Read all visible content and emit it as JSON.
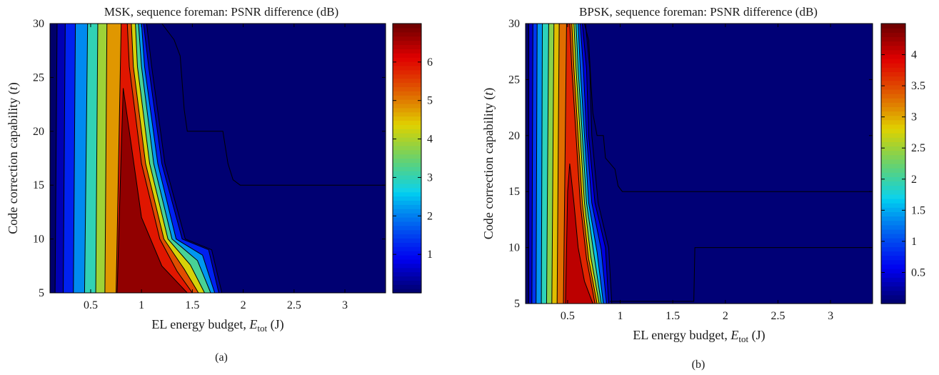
{
  "chart_data": [
    {
      "type": "contour",
      "title": "MSK, sequence foreman: PSNR difference (dB)",
      "xlabel_main": "EL energy budget, ",
      "xlabel_sym": "E",
      "xlabel_sub": "tot",
      "xlabel_unit": " (J)",
      "ylabel_main": "Code correction capability (",
      "ylabel_sym": "t",
      "ylabel_end": ")",
      "panel_label": "(a)",
      "xlim": [
        0.1,
        3.4
      ],
      "ylim": [
        5,
        30
      ],
      "xticks": [
        0.5,
        1,
        1.5,
        2,
        2.5,
        3
      ],
      "xtick_labels": [
        "0.5",
        "1",
        "1.5",
        "2",
        "2.5",
        "3"
      ],
      "yticks": [
        5,
        10,
        15,
        20,
        25,
        30
      ],
      "ytick_labels": [
        "5",
        "10",
        "15",
        "20",
        "25",
        "30"
      ],
      "colorbar_range": [
        0,
        7
      ],
      "colorbar_ticks": [
        1,
        2,
        3,
        4,
        5,
        6
      ],
      "colorbar_labels": [
        "1",
        "2",
        "3",
        "4",
        "5",
        "6"
      ],
      "bands": [
        {
          "level": 0.0,
          "x": [
            0.1,
            0.1
          ]
        },
        {
          "level": 0.5,
          "x": [
            0.15,
            0.17
          ]
        },
        {
          "level": 1.2,
          "x": [
            0.23,
            0.25
          ]
        },
        {
          "level": 2.1,
          "x": [
            0.33,
            0.35
          ]
        },
        {
          "level": 3.0,
          "x": [
            0.44,
            0.47
          ]
        },
        {
          "level": 3.9,
          "x": [
            0.55,
            0.57
          ]
        },
        {
          "level": 4.8,
          "x": [
            0.64,
            0.66
          ]
        },
        {
          "level": 5.9,
          "x": [
            0.75,
            0.8
          ]
        }
      ],
      "peak_region": {
        "level": 6.7,
        "outline": [
          [
            0.76,
            5
          ],
          [
            0.8,
            18
          ],
          [
            0.82,
            24
          ],
          [
            0.88,
            20
          ],
          [
            1.0,
            12
          ],
          [
            1.2,
            7.5
          ],
          [
            1.45,
            5
          ]
        ]
      },
      "falloff": [
        {
          "level": 5.4,
          "outline": [
            [
              0.86,
              30
            ],
            [
              0.88,
              26
            ],
            [
              1.0,
              17
            ],
            [
              1.18,
              10
            ],
            [
              1.35,
              7
            ],
            [
              1.5,
              5
            ]
          ]
        },
        {
          "level": 4.3,
          "outline": [
            [
              0.9,
              30
            ],
            [
              0.92,
              26
            ],
            [
              1.04,
              17
            ],
            [
              1.22,
              10
            ],
            [
              1.42,
              7.2
            ],
            [
              1.56,
              5
            ]
          ]
        },
        {
          "level": 3.2,
          "outline": [
            [
              0.94,
              30
            ],
            [
              0.96,
              26
            ],
            [
              1.08,
              17
            ],
            [
              1.26,
              10
            ],
            [
              1.48,
              7.6
            ],
            [
              1.62,
              5
            ]
          ]
        },
        {
          "level": 2.2,
          "outline": [
            [
              0.97,
              30
            ],
            [
              1.0,
              26
            ],
            [
              1.12,
              17
            ],
            [
              1.3,
              10
            ],
            [
              1.55,
              8
            ],
            [
              1.68,
              5
            ]
          ]
        },
        {
          "level": 1.2,
          "outline": [
            [
              1.0,
              30
            ],
            [
              1.03,
              26
            ],
            [
              1.16,
              17
            ],
            [
              1.34,
              10
            ],
            [
              1.6,
              8.5
            ],
            [
              1.72,
              5
            ]
          ]
        },
        {
          "level": 0.35,
          "outline": [
            [
              1.02,
              30
            ],
            [
              1.07,
              26
            ],
            [
              1.2,
              17
            ],
            [
              1.4,
              10
            ],
            [
              1.66,
              9
            ],
            [
              1.76,
              5
            ]
          ]
        }
      ],
      "zero_contour": [
        [
          1.2,
          30
        ],
        [
          1.32,
          28.5
        ],
        [
          1.38,
          27
        ],
        [
          1.42,
          22
        ],
        [
          1.45,
          20
        ],
        [
          1.8,
          20
        ],
        [
          1.85,
          17
        ],
        [
          1.9,
          15.5
        ],
        [
          1.97,
          15
        ],
        [
          3.4,
          15
        ]
      ]
    },
    {
      "type": "contour",
      "title": "BPSK, sequence foreman: PSNR difference (dB)",
      "xlabel_main": "EL energy budget, ",
      "xlabel_sym": "E",
      "xlabel_sub": "tot",
      "xlabel_unit": " (J)",
      "ylabel_main": "Code correction capability (",
      "ylabel_sym": "t",
      "ylabel_end": ")",
      "panel_label": "(b)",
      "xlim": [
        0.1,
        3.4
      ],
      "ylim": [
        5,
        30
      ],
      "xticks": [
        0.5,
        1,
        1.5,
        2,
        2.5,
        3
      ],
      "xtick_labels": [
        "0.5",
        "1",
        "1.5",
        "2",
        "2.5",
        "3"
      ],
      "yticks": [
        5,
        10,
        15,
        20,
        25,
        30
      ],
      "ytick_labels": [
        "5",
        "10",
        "15",
        "20",
        "25",
        "30"
      ],
      "colorbar_range": [
        0,
        4.5
      ],
      "colorbar_ticks": [
        0.5,
        1,
        1.5,
        2,
        2.5,
        3,
        3.5,
        4
      ],
      "colorbar_labels": [
        "0.5",
        "1",
        "1.5",
        "2",
        "2.5",
        "3",
        "3.5",
        "4"
      ],
      "bands": [
        {
          "level": 0.0,
          "x": [
            0.1,
            0.1
          ]
        },
        {
          "level": 0.4,
          "x": [
            0.13,
            0.13
          ]
        },
        {
          "level": 0.9,
          "x": [
            0.16,
            0.17
          ]
        },
        {
          "level": 1.4,
          "x": [
            0.2,
            0.21
          ]
        },
        {
          "level": 1.9,
          "x": [
            0.25,
            0.26
          ]
        },
        {
          "level": 2.4,
          "x": [
            0.3,
            0.32
          ]
        },
        {
          "level": 2.9,
          "x": [
            0.35,
            0.37
          ]
        },
        {
          "level": 3.3,
          "x": [
            0.4,
            0.42
          ]
        },
        {
          "level": 3.7,
          "x": [
            0.46,
            0.49
          ]
        }
      ],
      "peak_region": {
        "level": 4.1,
        "outline": [
          [
            0.48,
            5
          ],
          [
            0.5,
            15
          ],
          [
            0.52,
            17.5
          ],
          [
            0.56,
            14
          ],
          [
            0.6,
            10
          ],
          [
            0.66,
            7
          ],
          [
            0.74,
            5
          ]
        ]
      },
      "falloff": [
        {
          "level": 3.4,
          "outline": [
            [
              0.52,
              30
            ],
            [
              0.54,
              26
            ],
            [
              0.58,
              20
            ],
            [
              0.62,
              14
            ],
            [
              0.68,
              9
            ],
            [
              0.76,
              5
            ]
          ]
        },
        {
          "level": 2.8,
          "outline": [
            [
              0.54,
              30
            ],
            [
              0.56,
              26
            ],
            [
              0.6,
              20
            ],
            [
              0.64,
              14
            ],
            [
              0.7,
              9
            ],
            [
              0.78,
              5
            ]
          ]
        },
        {
          "level": 2.2,
          "outline": [
            [
              0.56,
              30
            ],
            [
              0.58,
              26
            ],
            [
              0.62,
              20
            ],
            [
              0.66,
              14
            ],
            [
              0.72,
              9.2
            ],
            [
              0.8,
              5
            ]
          ]
        },
        {
          "level": 1.6,
          "outline": [
            [
              0.58,
              30
            ],
            [
              0.6,
              26
            ],
            [
              0.64,
              20
            ],
            [
              0.68,
              14
            ],
            [
              0.75,
              9.4
            ],
            [
              0.82,
              5
            ]
          ]
        },
        {
          "level": 1.0,
          "outline": [
            [
              0.6,
              30
            ],
            [
              0.62,
              26
            ],
            [
              0.66,
              20
            ],
            [
              0.7,
              14
            ],
            [
              0.78,
              9.6
            ],
            [
              0.84,
              5
            ]
          ]
        },
        {
          "level": 0.5,
          "outline": [
            [
              0.62,
              30
            ],
            [
              0.65,
              26
            ],
            [
              0.68,
              20
            ],
            [
              0.73,
              14
            ],
            [
              0.82,
              9.8
            ],
            [
              0.87,
              5
            ]
          ]
        },
        {
          "level": 0.2,
          "outline": [
            [
              0.64,
              30
            ],
            [
              0.68,
              26
            ],
            [
              0.7,
              20
            ],
            [
              0.76,
              14
            ],
            [
              0.86,
              10
            ],
            [
              0.89,
              5
            ]
          ]
        }
      ],
      "zero_contour": [
        [
          0.66,
          30
        ],
        [
          0.7,
          28.5
        ],
        [
          0.72,
          25
        ],
        [
          0.74,
          22
        ],
        [
          0.78,
          20
        ],
        [
          0.84,
          20
        ],
        [
          0.86,
          18
        ],
        [
          0.95,
          17
        ],
        [
          0.98,
          15.5
        ],
        [
          1.02,
          15
        ],
        [
          3.4,
          15
        ]
      ],
      "zero_contour_2": [
        [
          3.4,
          10
        ],
        [
          1.71,
          10
        ],
        [
          1.7,
          5.2
        ],
        [
          0.9,
          5.2
        ]
      ]
    }
  ]
}
